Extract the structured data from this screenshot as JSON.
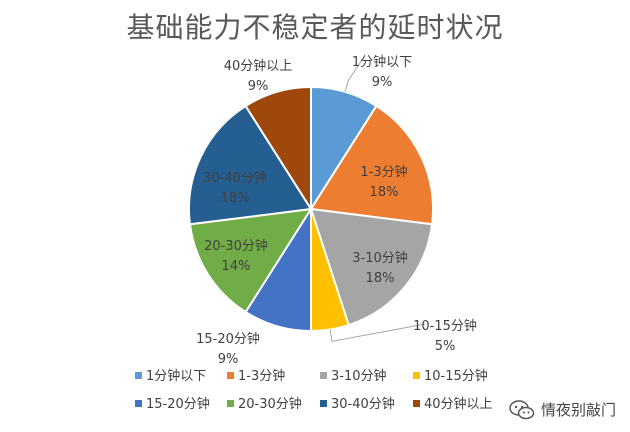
{
  "chart_data": {
    "type": "pie",
    "title": "基础能力不稳定者的延时状况",
    "legend_position": "bottom",
    "categories": [
      "1分钟以下",
      "1-3分钟",
      "3-10分钟",
      "10-15分钟",
      "15-20分钟",
      "20-30分钟",
      "30-40分钟",
      "40分钟以上"
    ],
    "values": [
      9,
      18,
      18,
      5,
      9,
      14,
      18,
      9
    ],
    "value_labels": [
      "9%",
      "18%",
      "18%",
      "5%",
      "9%",
      "14%",
      "18%",
      "9%"
    ],
    "colors": [
      "#5B9BD5",
      "#ED7D31",
      "#A5A5A5",
      "#FFC000",
      "#4472C4",
      "#70AD47",
      "#255E91",
      "#9E480E"
    ]
  },
  "watermark": {
    "text": "情夜别敲门",
    "icon": "wechat-icon"
  }
}
